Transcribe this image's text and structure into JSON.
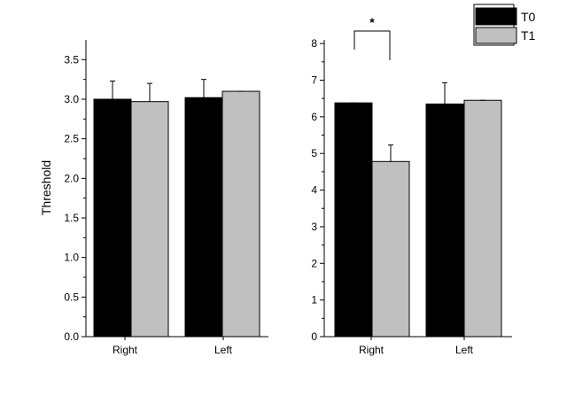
{
  "chart_data": [
    {
      "type": "bar",
      "categories": [
        "Right",
        "Left"
      ],
      "series": [
        {
          "name": "T0",
          "values": [
            3.0,
            3.02
          ],
          "errors": [
            0.23,
            0.23
          ],
          "color": "#000000"
        },
        {
          "name": "T1",
          "values": [
            2.97,
            3.1
          ],
          "errors": [
            0.23,
            0.0
          ],
          "color": "#c0c0c0"
        }
      ],
      "ylabel": "Threshold",
      "ylim": [
        0,
        3.75
      ],
      "yticks": [
        "0.0",
        "0.5",
        "1.0",
        "1.5",
        "2.0",
        "2.5",
        "3.0",
        "3.5"
      ],
      "grid": false
    },
    {
      "type": "bar",
      "categories": [
        "Right",
        "Left"
      ],
      "series": [
        {
          "name": "T0",
          "values": [
            6.38,
            6.35
          ],
          "errors": [
            0.0,
            0.58
          ],
          "color": "#000000"
        },
        {
          "name": "T1",
          "values": [
            4.78,
            6.45
          ],
          "errors": [
            0.45,
            0.0
          ],
          "color": "#c0c0c0"
        }
      ],
      "ylim": [
        0,
        8.1
      ],
      "yticks": [
        "0",
        "1",
        "2",
        "3",
        "4",
        "5",
        "6",
        "7",
        "8"
      ],
      "annotation": "*",
      "grid": false,
      "legend": {
        "placement": "top-right",
        "entries": [
          "T0",
          "T1"
        ]
      }
    }
  ]
}
